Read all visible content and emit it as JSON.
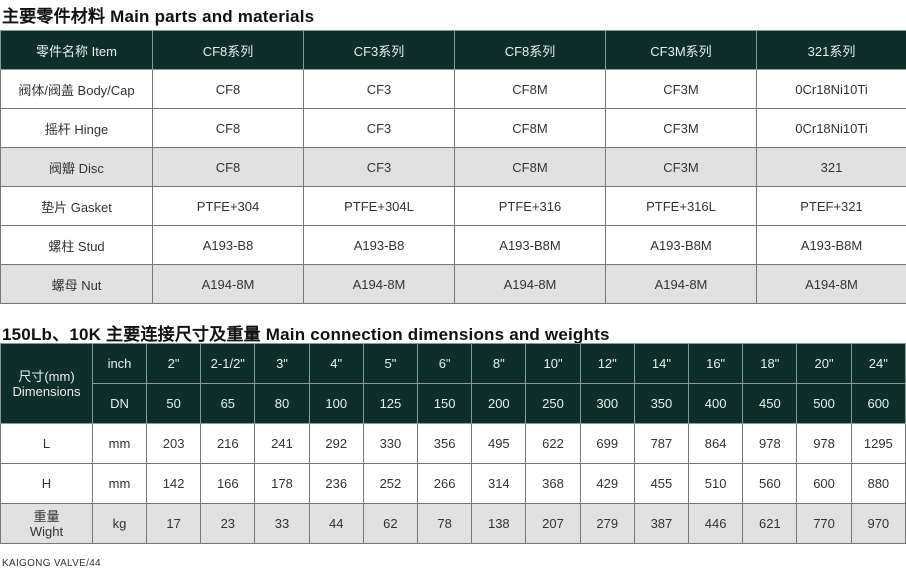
{
  "materials": {
    "title": "主要零件材料 Main parts and materials",
    "header": [
      "零件名称 Item",
      "CF8系列",
      "CF3系列",
      "CF8系列",
      "CF3M系列",
      "321系列"
    ],
    "rows": [
      {
        "cells": [
          "阀体/阀盖 Body/Cap",
          "CF8",
          "CF3",
          "CF8M",
          "CF3M",
          "0Cr18Ni10Ti"
        ],
        "shaded": false
      },
      {
        "cells": [
          "摇杆 Hinge",
          "CF8",
          "CF3",
          "CF8M",
          "CF3M",
          "0Cr18Ni10Ti"
        ],
        "shaded": false
      },
      {
        "cells": [
          "阀瓣 Disc",
          "CF8",
          "CF3",
          "CF8M",
          "CF3M",
          "321"
        ],
        "shaded": true
      },
      {
        "cells": [
          "垫片 Gasket",
          "PTFE+304",
          "PTFE+304L",
          "PTFE+316",
          "PTFE+316L",
          "PTEF+321"
        ],
        "shaded": false
      },
      {
        "cells": [
          "螺柱 Stud",
          "A193-B8",
          "A193-B8",
          "A193-B8M",
          "A193-B8M",
          "A193-B8M"
        ],
        "shaded": false
      },
      {
        "cells": [
          "螺母 Nut",
          "A194-8M",
          "A194-8M",
          "A194-8M",
          "A194-8M",
          "A194-8M"
        ],
        "shaded": true
      }
    ]
  },
  "dimensions": {
    "title": "150Lb、10K 主要连接尺寸及重量 Main connection dimensions and weights",
    "row_header_line1": "尺寸(mm)",
    "row_header_line2": "Dimensions",
    "inch_label": "inch",
    "inch": [
      "2\"",
      "2-1/2\"",
      "3\"",
      "4\"",
      "5\"",
      "6\"",
      "8\"",
      "10\"",
      "12\"",
      "14\"",
      "16\"",
      "18\"",
      "20\"",
      "24\""
    ],
    "dn_label": "DN",
    "dn": [
      "50",
      "65",
      "80",
      "100",
      "125",
      "150",
      "200",
      "250",
      "300",
      "350",
      "400",
      "450",
      "500",
      "600"
    ],
    "rows": [
      {
        "label": "L",
        "unit": "mm",
        "values": [
          "203",
          "216",
          "241",
          "292",
          "330",
          "356",
          "495",
          "622",
          "699",
          "787",
          "864",
          "978",
          "978",
          "1295"
        ],
        "shaded": false
      },
      {
        "label": "H",
        "unit": "mm",
        "values": [
          "142",
          "166",
          "178",
          "236",
          "252",
          "266",
          "314",
          "368",
          "429",
          "455",
          "510",
          "560",
          "600",
          "880"
        ],
        "shaded": false
      },
      {
        "label": "重量\nWight",
        "unit": "kg",
        "values": [
          "17",
          "23",
          "33",
          "44",
          "62",
          "78",
          "138",
          "207",
          "279",
          "387",
          "446",
          "621",
          "770",
          "970"
        ],
        "shaded": true
      }
    ]
  },
  "footer": "KAIGONG VALVE/44",
  "colors": {
    "header_bg": "#0d2e29",
    "shaded_row": "#e1e1e1"
  }
}
